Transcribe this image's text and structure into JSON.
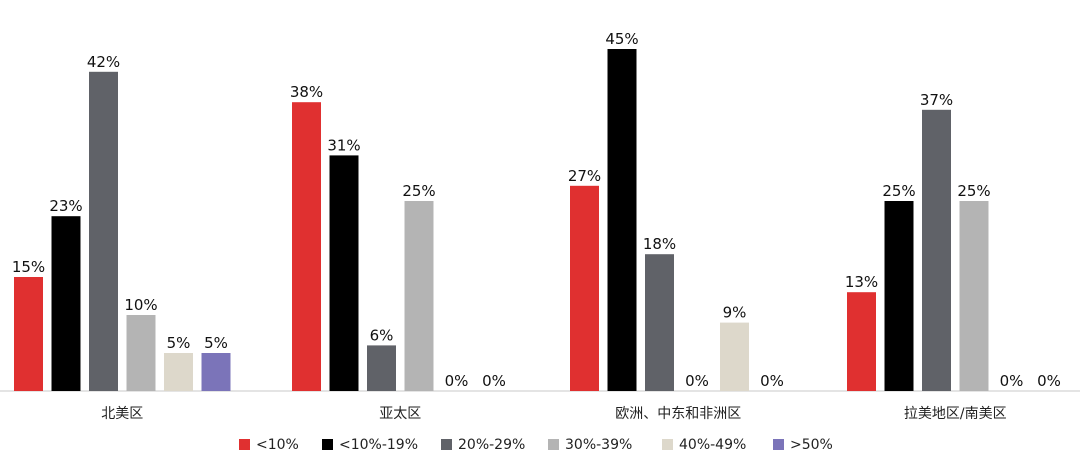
{
  "chart_data": {
    "type": "bar",
    "categories": [
      "北美区",
      "亚太区",
      "欧洲、中东和非洲区",
      "拉美地区/南美区"
    ],
    "series": [
      {
        "name": "<10%",
        "color": "#e03030",
        "values": [
          15,
          38,
          27,
          13
        ]
      },
      {
        "name": "<10%-19%",
        "color": "#000000",
        "values": [
          23,
          31,
          45,
          25
        ]
      },
      {
        "name": "20%-29%",
        "color": "#606268",
        "values": [
          42,
          6,
          18,
          37
        ]
      },
      {
        "name": "30%-39%",
        "color": "#b4b4b4",
        "values": [
          10,
          25,
          0,
          25
        ]
      },
      {
        "name": "40%-49%",
        "color": "#ddd8cb",
        "values": [
          5,
          0,
          9,
          0
        ]
      },
      {
        "name": ">50%",
        "color": "#7b74b9",
        "values": [
          5,
          0,
          0,
          0
        ]
      }
    ],
    "value_suffix": "%",
    "ylim": [
      0,
      45
    ],
    "grid": false,
    "legend_position": "bottom"
  }
}
